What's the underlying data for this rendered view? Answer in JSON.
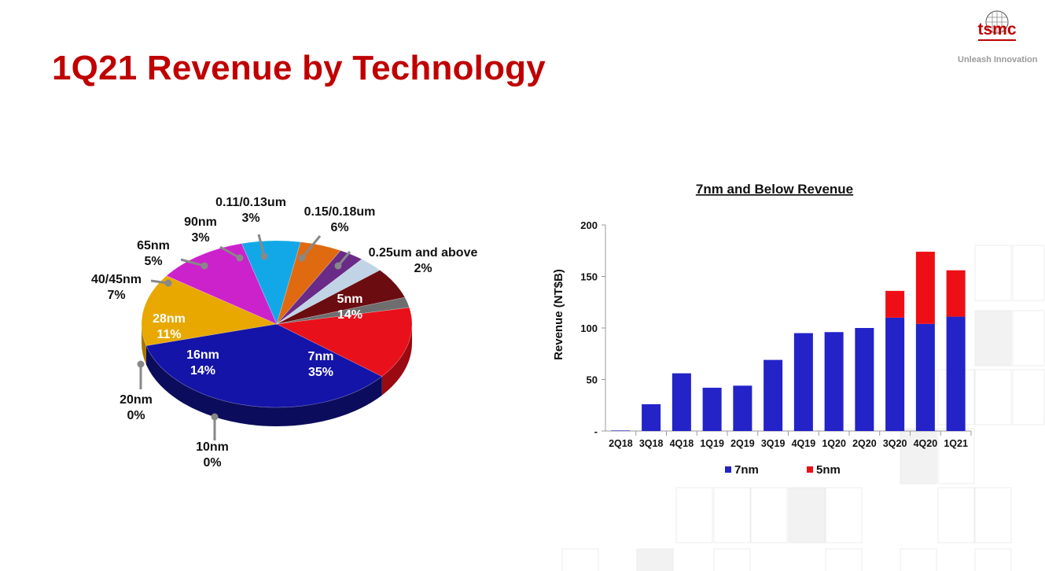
{
  "slide": {
    "title": "1Q21 Revenue by Technology",
    "logo_text": "tsmc",
    "tagline": "Unleash Innovation"
  },
  "colors": {
    "brand_red": "#c00000"
  },
  "chart_data": [
    {
      "type": "pie",
      "title": "",
      "slices": [
        {
          "name": "5nm",
          "value": 14,
          "label": "14%",
          "color": "#e8101a",
          "side": "#9a0a10"
        },
        {
          "name": "7nm",
          "value": 35,
          "label": "35%",
          "color": "#1414a8",
          "side": "#0c0c5c"
        },
        {
          "name": "10nm",
          "value": 0,
          "label": "0%",
          "color": "#808080",
          "side": "#555555"
        },
        {
          "name": "16nm",
          "value": 14,
          "label": "14%",
          "color": "#e8a800",
          "side": "#a87600"
        },
        {
          "name": "20nm",
          "value": 0,
          "label": "0%",
          "color": "#808080",
          "side": "#555555"
        },
        {
          "name": "28nm",
          "value": 11,
          "label": "11%",
          "color": "#cc22cc",
          "side": "#8a0f8a"
        },
        {
          "name": "40/45nm",
          "value": 7,
          "label": "7%",
          "color": "#12a8e8",
          "side": "#0a70a0"
        },
        {
          "name": "65nm",
          "value": 5,
          "label": "5%",
          "color": "#e06a10",
          "side": "#9a4508"
        },
        {
          "name": "90nm",
          "value": 3,
          "label": "3%",
          "color": "#6a2a88",
          "side": "#451a5a"
        },
        {
          "name": "0.11/0.13um",
          "value": 3,
          "label": "3%",
          "color": "#c0d4e6",
          "side": "#8aa0b4"
        },
        {
          "name": "0.15/0.18um",
          "value": 6,
          "label": "6%",
          "color": "#6a0c10",
          "side": "#3e0608"
        },
        {
          "name": "0.25um and above",
          "value": 2,
          "label": "2%",
          "color": "#6e6e6e",
          "side": "#454545"
        }
      ]
    },
    {
      "type": "bar",
      "title": "7nm and Below Revenue",
      "ylabel": "Revenue (NT$B)",
      "xlabel": "",
      "ylim": [
        0,
        200
      ],
      "yticks": [
        0,
        50,
        100,
        150,
        200
      ],
      "ytick_labels": [
        "-",
        "50",
        "100",
        "150",
        "200"
      ],
      "categories": [
        "2Q18",
        "3Q18",
        "4Q18",
        "1Q19",
        "2Q19",
        "3Q19",
        "4Q19",
        "1Q20",
        "2Q20",
        "3Q20",
        "4Q20",
        "1Q21"
      ],
      "stacked": true,
      "legend_position": "bottom",
      "series": [
        {
          "name": "7nm",
          "color": "#2323c8",
          "values": [
            0.5,
            26,
            56,
            42,
            44,
            69,
            95,
            96,
            100,
            110,
            104,
            111
          ]
        },
        {
          "name": "5nm",
          "color": "#ee0f16",
          "values": [
            0,
            0,
            0,
            0,
            0,
            0,
            0,
            0,
            0,
            26,
            70,
            45
          ]
        }
      ]
    }
  ]
}
